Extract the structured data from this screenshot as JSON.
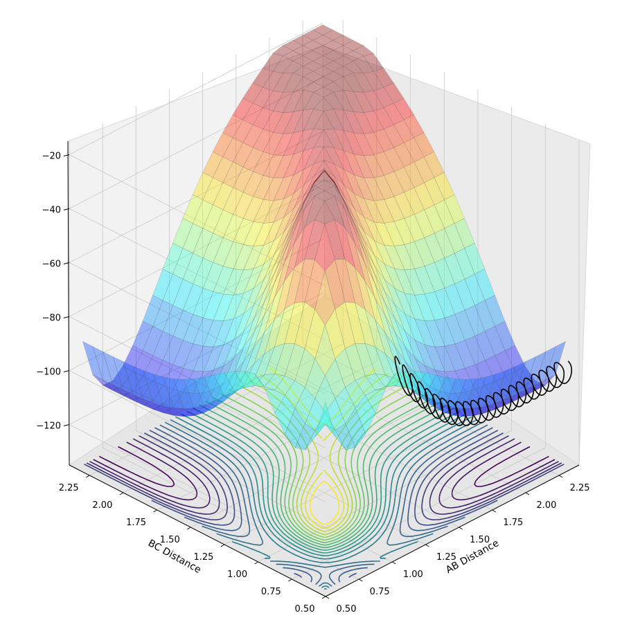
{
  "chart_data": {
    "type": "surface3d",
    "description_hidden": "",
    "xlabel": "AB Distance",
    "ylabel": "BC Distance",
    "zlabel": "",
    "x_ticks": [
      "0.50",
      "0.75",
      "1.00",
      "1.25",
      "1.50",
      "1.75",
      "2.00",
      "2.25"
    ],
    "y_ticks": [
      "0.50",
      "0.75",
      "1.00",
      "1.25",
      "1.50",
      "1.75",
      "2.00",
      "2.25"
    ],
    "z_ticks": [
      "−120",
      "−100",
      "−80",
      "−60",
      "−40",
      "−20"
    ],
    "x_range": [
      0.5,
      2.4
    ],
    "y_range": [
      0.5,
      2.4
    ],
    "z_range": [
      -135,
      -15
    ],
    "surface_colormap": "jet",
    "contour_colormap": "viridis",
    "contour_plane_z": -135,
    "trajectory_color": "#000000",
    "pane_color": "#f2f2f2",
    "grid": true
  }
}
